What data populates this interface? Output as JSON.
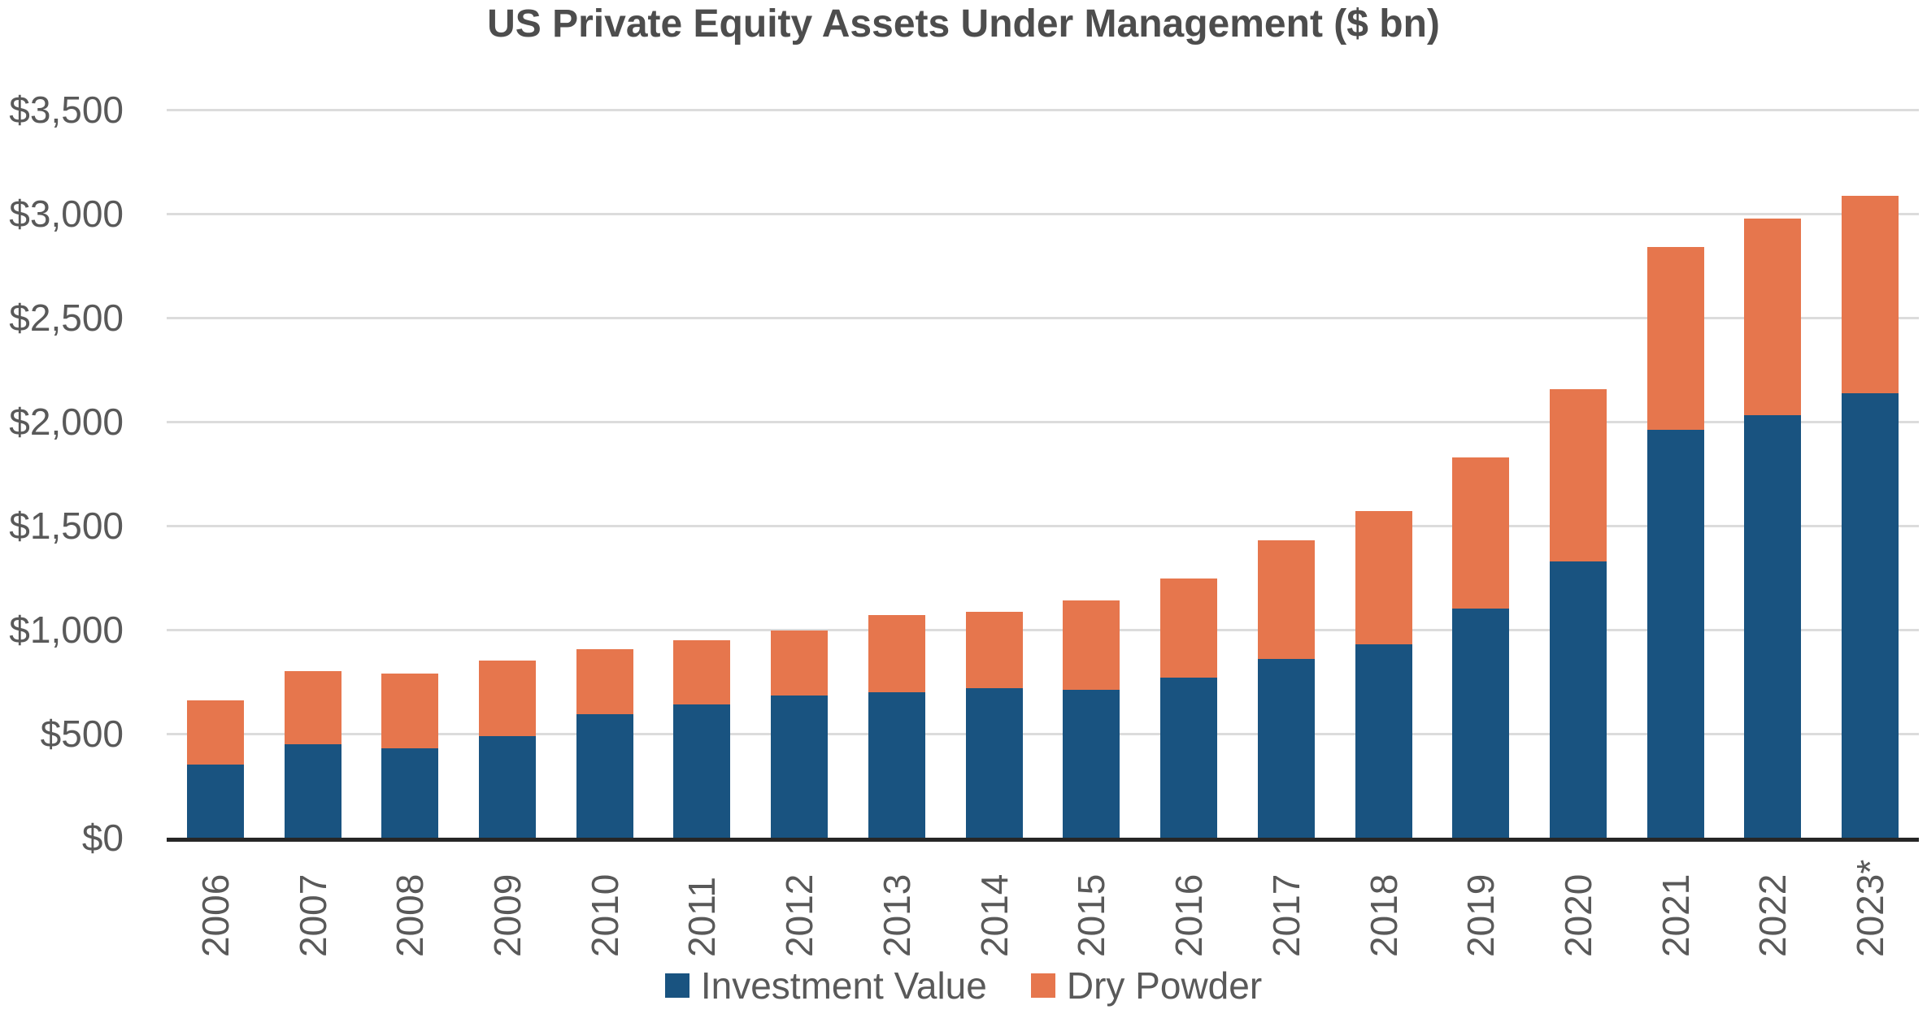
{
  "title": "US Private Equity Assets Under Management ($ bn)",
  "colors": {
    "investment_value": "#195380",
    "dry_powder": "#e6764d",
    "gridline": "#dcdcdc",
    "axis_line": "#262626",
    "label_text": "#595959",
    "title_text": "#4d4d4d"
  },
  "chart_data": {
    "type": "bar",
    "stacked": true,
    "title": "US Private Equity Assets Under Management ($ bn)",
    "categories": [
      "2006",
      "2007",
      "2008",
      "2009",
      "2010",
      "2011",
      "2012",
      "2013",
      "2014",
      "2015",
      "2016",
      "2017",
      "2018",
      "2019",
      "2020",
      "2021",
      "2022",
      "2023*"
    ],
    "series": [
      {
        "name": "Investment Value",
        "color": "#195380",
        "values": [
          350,
          450,
          430,
          490,
          595,
          640,
          685,
          700,
          720,
          710,
          770,
          860,
          930,
          1100,
          1330,
          1960,
          2030,
          2135
        ]
      },
      {
        "name": "Dry Powder",
        "color": "#e6764d",
        "values": [
          310,
          350,
          360,
          360,
          310,
          310,
          310,
          370,
          365,
          430,
          475,
          570,
          640,
          730,
          825,
          880,
          945,
          950
        ]
      }
    ],
    "totals": [
      660,
      800,
      790,
      850,
      905,
      950,
      995,
      1070,
      1085,
      1140,
      1245,
      1430,
      1570,
      1830,
      2155,
      2840,
      2975,
      3085
    ],
    "y_ticks": [
      "$0",
      "$500",
      "$1,000",
      "$1,500",
      "$2,000",
      "$2,500",
      "$3,000",
      "$3,500"
    ],
    "ylim": [
      0,
      3500
    ],
    "grid": "horizontal",
    "legend_position": "bottom-center",
    "x_tick_rotation": -90
  }
}
